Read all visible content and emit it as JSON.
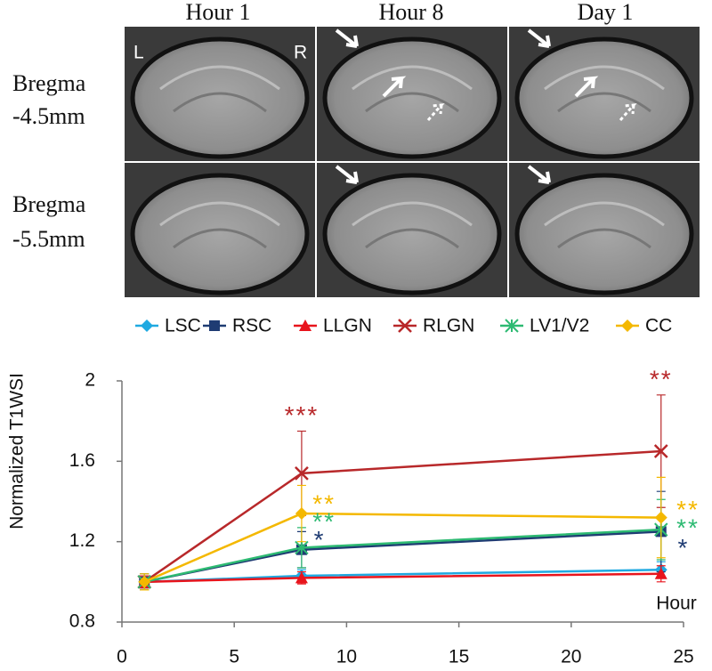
{
  "images": {
    "column_titles": [
      "Hour 1",
      "Hour 8",
      "Day 1"
    ],
    "row_labels": [
      [
        "Bregma",
        "-4.5mm"
      ],
      [
        "Bregma",
        "-5.5mm"
      ]
    ],
    "side_labels": [
      "L",
      "R"
    ]
  },
  "chart_data": {
    "type": "line",
    "y_label": "Normalized T1WSI",
    "x_label": "Hour",
    "x": [
      1,
      8,
      24
    ],
    "xlim": [
      0,
      25
    ],
    "xticks": [
      0,
      5,
      10,
      15,
      20,
      25
    ],
    "ylim": [
      0.8,
      2
    ],
    "yticks": [
      0.8,
      1.2,
      1.6,
      2
    ],
    "series": [
      {
        "name": "LSC",
        "color": "#1fa9e1",
        "marker": "diamond",
        "values": [
          1.0,
          1.03,
          1.06
        ],
        "errors": [
          0.03,
          0.03,
          0.04
        ]
      },
      {
        "name": "RSC",
        "color": "#1f3c73",
        "marker": "square",
        "values": [
          1.0,
          1.16,
          1.25
        ],
        "errors": [
          0.03,
          0.09,
          0.2
        ]
      },
      {
        "name": "LLGN",
        "color": "#e8141c",
        "marker": "triangle",
        "values": [
          1.0,
          1.02,
          1.04
        ],
        "errors": [
          0.03,
          0.03,
          0.04
        ]
      },
      {
        "name": "RLGN",
        "color": "#b8282a",
        "marker": "x",
        "values": [
          1.0,
          1.54,
          1.65
        ],
        "errors": [
          0.04,
          0.21,
          0.28
        ]
      },
      {
        "name": "LV1/V2",
        "color": "#2dba72",
        "marker": "star",
        "values": [
          1.0,
          1.17,
          1.26
        ],
        "errors": [
          0.04,
          0.1,
          0.15
        ]
      },
      {
        "name": "CC",
        "color": "#f4b800",
        "marker": "circle",
        "values": [
          1.0,
          1.34,
          1.32
        ],
        "errors": [
          0.04,
          0.14,
          0.2
        ]
      }
    ],
    "annotations": [
      {
        "text": "***",
        "x": 8,
        "y": 1.82,
        "color": "#b8282a"
      },
      {
        "text": "**",
        "x": 24,
        "y": 2.0,
        "color": "#b8282a"
      },
      {
        "text": "**",
        "x": 9,
        "y": 1.38,
        "color": "#f4b800"
      },
      {
        "text": "**",
        "x": 9,
        "y": 1.29,
        "color": "#2dba72"
      },
      {
        "text": "*",
        "x": 8.8,
        "y": 1.2,
        "color": "#1f3c73"
      },
      {
        "text": "**",
        "x": 25.2,
        "y": 1.35,
        "color": "#f4b800"
      },
      {
        "text": "**",
        "x": 25.2,
        "y": 1.26,
        "color": "#2dba72"
      },
      {
        "text": "*",
        "x": 25,
        "y": 1.16,
        "color": "#1f3c73"
      }
    ]
  }
}
